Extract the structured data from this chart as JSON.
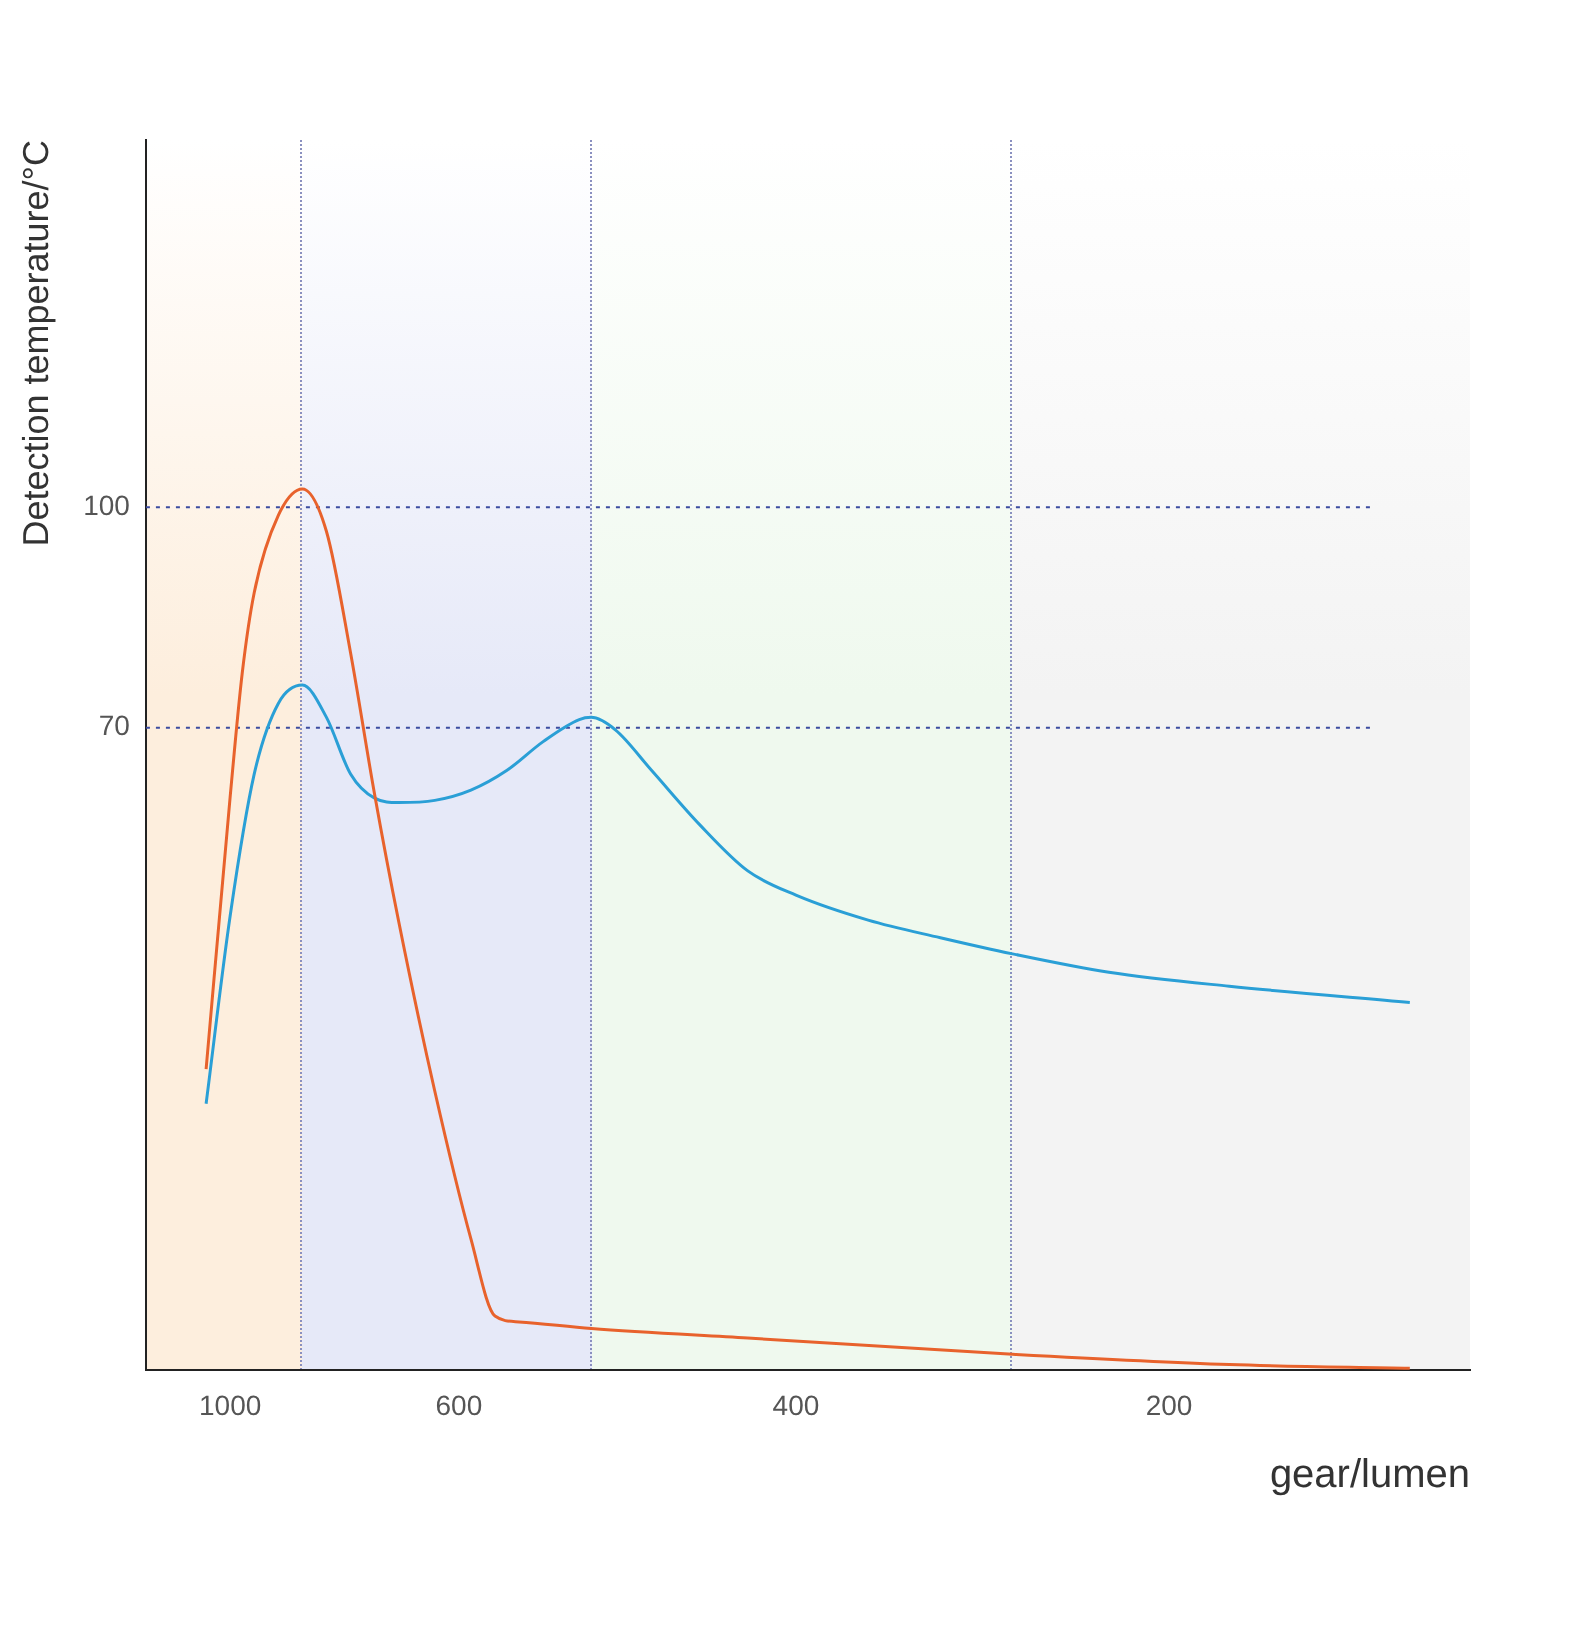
{
  "chart_data": {
    "type": "line",
    "xlabel": "gear/lumen",
    "ylabel": "Detection temperature/°C",
    "categories": [
      null,
      null,
      null,
      null,
      null,
      null,
      null,
      "1000",
      null,
      null,
      null,
      null,
      null,
      null,
      null,
      null,
      null,
      null,
      null,
      null,
      null,
      null,
      null,
      null,
      null,
      null,
      "600",
      null,
      null,
      null,
      null,
      null,
      null,
      null,
      null,
      null,
      null,
      null,
      null,
      null,
      null,
      null,
      null,
      null,
      null,
      null,
      null,
      null,
      null,
      null,
      null,
      null,
      null,
      null,
      "400",
      null,
      null,
      null,
      null,
      null,
      null,
      null,
      null,
      null,
      null,
      null,
      null,
      null,
      null,
      null,
      null,
      null,
      null,
      null,
      null,
      null,
      null,
      null,
      null,
      null,
      null,
      null,
      null,
      null,
      null,
      "200",
      null,
      null,
      null,
      null,
      null,
      null,
      null,
      null,
      null,
      null,
      null,
      null,
      null,
      null,
      null,
      null,
      null,
      null,
      null,
      null,
      null,
      null,
      null,
      null,
      null
    ],
    "series": [
      {
        "color": "#e8622c",
        "values": [
          null,
          null,
          null,
          null,
          null,
          23.5,
          null,
          60.6,
          77.4,
          88.4,
          null,
          98.9,
          null,
          102.5,
          null,
          96.7,
          null,
          80.2,
          null,
          60.9,
          null,
          43.6,
          null,
          null,
          20.5,
          null,
          null,
          0.4,
          null,
          -10.1,
          null,
          -10.9,
          null,
          null,
          null,
          null,
          null,
          -11.8,
          null,
          null,
          null,
          null,
          null,
          null,
          null,
          null,
          null,
          null,
          null,
          null,
          -13.1,
          null,
          null,
          null,
          null,
          null,
          null,
          null,
          null,
          null,
          null,
          null,
          null,
          null,
          null,
          null,
          null,
          null,
          null,
          null,
          null,
          null,
          -15.3,
          null,
          null,
          null,
          null,
          null,
          null,
          null,
          null,
          null,
          null,
          null,
          null,
          null,
          null,
          null,
          null,
          null,
          -16.7,
          null,
          null,
          null,
          null,
          null,
          null,
          null,
          null,
          null,
          null,
          null,
          null,
          null,
          null,
          -17.2,
          null,
          null,
          null,
          null,
          null
        ]
      },
      {
        "color": "#2a9fd6",
        "values": [
          null,
          null,
          null,
          null,
          null,
          18.8,
          null,
          44.4,
          null,
          63.7,
          null,
          73.3,
          null,
          75.8,
          null,
          71.4,
          null,
          63.7,
          null,
          60.4,
          null,
          59.8,
          null,
          null,
          60.1,
          null,
          null,
          61.5,
          null,
          null,
          64.2,
          null,
          null,
          68.1,
          null,
          null,
          71.1,
          71.4,
          null,
          69.7,
          null,
          null,
          64.2,
          null,
          null,
          null,
          56.8,
          null,
          null,
          null,
          50.5,
          null,
          null,
          null,
          47.2,
          null,
          null,
          null,
          null,
          null,
          43.8,
          null,
          null,
          null,
          null,
          null,
          41.4,
          null,
          null,
          null,
          null,
          null,
          39.2,
          null,
          null,
          null,
          null,
          null,
          null,
          null,
          36.7,
          null,
          null,
          null,
          null,
          null,
          null,
          null,
          null,
          null,
          34.8,
          null,
          null,
          null,
          null,
          null,
          null,
          null,
          null,
          null,
          null,
          null,
          null,
          null,
          null,
          32.6,
          null,
          null,
          null,
          null,
          null
        ]
      }
    ],
    "ylim": [
      -17.5,
      150
    ],
    "yticks": [
      100,
      70
    ],
    "ref_lines": [
      {
        "axis": "y",
        "value": 100,
        "color": "#3b4ba0",
        "line_style": "dotted"
      },
      {
        "axis": "y",
        "value": 70,
        "color": "#3b4ba0",
        "line_style": "dotted"
      }
    ],
    "grid": false,
    "legend": false,
    "marker": "none",
    "line_style": "solid"
  }
}
